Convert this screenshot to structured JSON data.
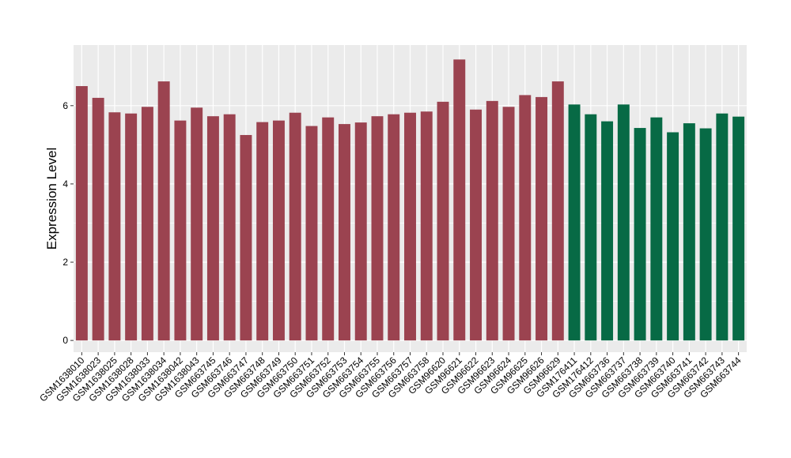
{
  "chart_data": {
    "type": "bar",
    "title": "",
    "xlabel": "",
    "ylabel": "Expression Level",
    "ylim": [
      -0.3,
      7.55
    ],
    "yticks": [
      0,
      2,
      4,
      6
    ],
    "grid": true,
    "colors": {
      "group1": "#9b4350",
      "group2": "#076a45",
      "panel": "#ebebeb",
      "grid": "#ffffff"
    },
    "categories": [
      "GSM1638010",
      "GSM1638023",
      "GSM1638025",
      "GSM1638028",
      "GSM1638033",
      "GSM1638034",
      "GSM1638042",
      "GSM1638043",
      "GSM663745",
      "GSM663746",
      "GSM663747",
      "GSM663748",
      "GSM663749",
      "GSM663750",
      "GSM663751",
      "GSM663752",
      "GSM663753",
      "GSM663754",
      "GSM663755",
      "GSM663756",
      "GSM663757",
      "GSM663758",
      "GSM96620",
      "GSM96621",
      "GSM96622",
      "GSM96623",
      "GSM96624",
      "GSM96625",
      "GSM96626",
      "GSM96629",
      "GSM176411",
      "GSM176412",
      "GSM663736",
      "GSM663737",
      "GSM663738",
      "GSM663739",
      "GSM663740",
      "GSM663741",
      "GSM663742",
      "GSM663743",
      "GSM663744"
    ],
    "values": [
      6.5,
      6.2,
      5.83,
      5.8,
      5.97,
      6.62,
      5.62,
      5.95,
      5.73,
      5.78,
      5.25,
      5.58,
      5.62,
      5.82,
      5.48,
      5.7,
      5.53,
      5.57,
      5.73,
      5.78,
      5.82,
      5.85,
      6.1,
      7.18,
      5.9,
      6.12,
      5.97,
      6.27,
      6.22,
      6.62,
      6.03,
      5.78,
      5.6,
      6.03,
      5.43,
      5.7,
      5.32,
      5.55,
      5.42,
      5.8,
      5.72
    ],
    "groups": [
      1,
      1,
      1,
      1,
      1,
      1,
      1,
      1,
      1,
      1,
      1,
      1,
      1,
      1,
      1,
      1,
      1,
      1,
      1,
      1,
      1,
      1,
      1,
      1,
      1,
      1,
      1,
      1,
      1,
      1,
      2,
      2,
      2,
      2,
      2,
      2,
      2,
      2,
      2,
      2,
      2
    ]
  }
}
